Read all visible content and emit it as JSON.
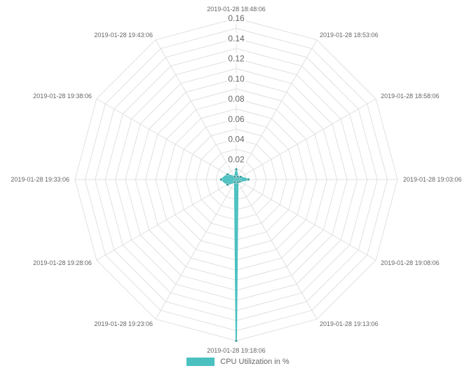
{
  "chart_data": {
    "type": "radar",
    "title": "",
    "labels": [
      "2019-01-28 18:48:06",
      "2019-01-28 18:53:06",
      "2019-01-28 18:58:06",
      "2019-01-28 19:03:06",
      "2019-01-28 19:08:06",
      "2019-01-28 19:13:06",
      "2019-01-28 19:18:06",
      "2019-01-28 19:23:06",
      "2019-01-28 19:28:06",
      "2019-01-28 19:33:06",
      "2019-01-28 19:38:06",
      "2019-01-28 19:43:06"
    ],
    "ticks": [
      "0.02",
      "0.04",
      "0.06",
      "0.08",
      "0.10",
      "0.12",
      "0.14",
      "0.16"
    ],
    "rmin": 0,
    "rmax": 0.16,
    "grid": true,
    "legend_position": "bottom",
    "series": [
      {
        "name": "CPU Utilization in %",
        "color": "#4bc0c0",
        "values": [
          0.01,
          0.003,
          0.005,
          0.012,
          0.004,
          0.003,
          0.16,
          0.003,
          0.01,
          0.015,
          0.01,
          0.003
        ]
      }
    ]
  }
}
